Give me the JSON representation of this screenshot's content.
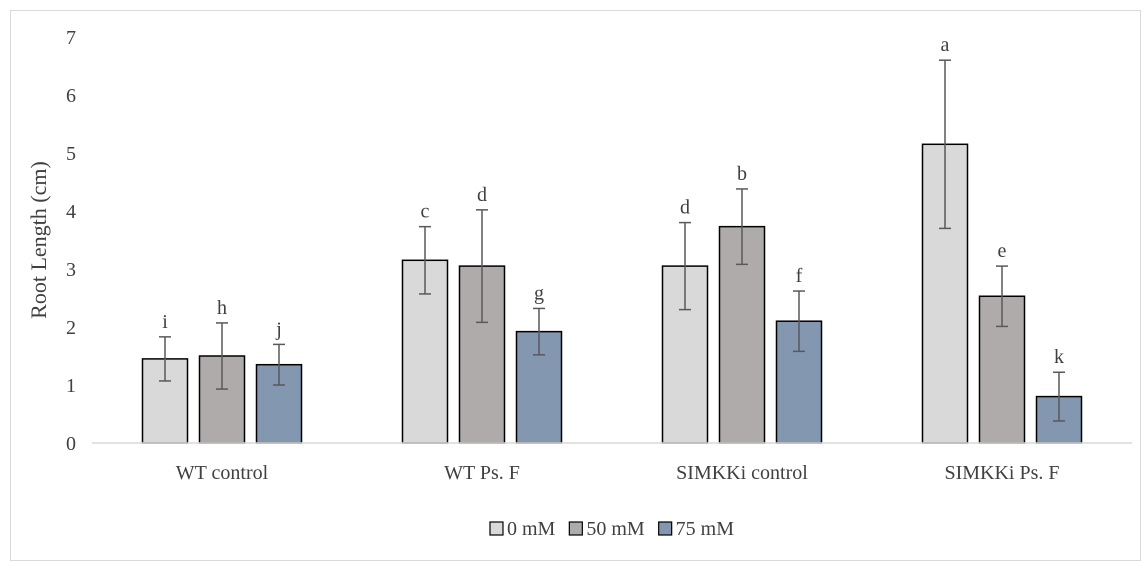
{
  "chart_data": {
    "type": "bar",
    "title": "",
    "xlabel": "",
    "ylabel": "Root Length (cm)",
    "ylim": [
      0,
      7
    ],
    "yticks": [
      0,
      1,
      2,
      3,
      4,
      5,
      6,
      7
    ],
    "grid": false,
    "legend_position": "bottom",
    "categories": [
      "WT control",
      "WT Ps. F",
      "SIMKKi control",
      "SIMKKi Ps. F"
    ],
    "series": [
      {
        "name": "0 mM",
        "color": "#d9d9d9",
        "values": [
          1.45,
          3.15,
          3.05,
          5.15
        ],
        "errors": [
          0.38,
          0.58,
          0.75,
          1.45
        ],
        "labels": [
          "i",
          "c",
          "d",
          "a"
        ]
      },
      {
        "name": "50 mM",
        "color": "#afabab",
        "values": [
          1.5,
          3.05,
          3.73,
          2.53
        ],
        "errors": [
          0.57,
          0.97,
          0.65,
          0.52
        ],
        "labels": [
          "h",
          "d",
          "b",
          "e"
        ]
      },
      {
        "name": "75 mM",
        "color": "#8497b0",
        "values": [
          1.35,
          1.92,
          2.1,
          0.8
        ],
        "errors": [
          0.35,
          0.4,
          0.52,
          0.42
        ],
        "labels": [
          "j",
          "g",
          "f",
          "k"
        ]
      }
    ]
  }
}
